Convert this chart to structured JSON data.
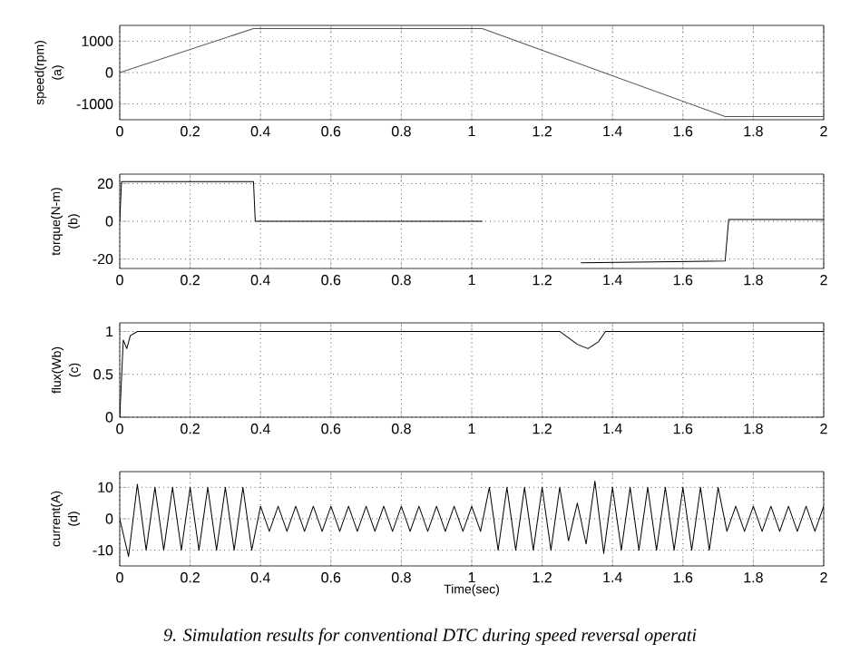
{
  "chart_data": [
    {
      "type": "line",
      "ylabel": "speed(rpm)",
      "annotations": [
        "(a)"
      ],
      "xlim": [
        0,
        2
      ],
      "xticks": [
        0,
        0.2,
        0.4,
        0.6,
        0.8,
        1,
        1.2,
        1.4,
        1.6,
        1.8,
        2
      ],
      "ylim": [
        -1500,
        1500
      ],
      "yticks": [
        -1000,
        0,
        1000
      ],
      "grid": true,
      "series": [
        {
          "color": "#555555",
          "x": [
            0,
            0.38,
            1.03,
            1.72,
            2
          ],
          "values": [
            0,
            1400,
            1400,
            -1400,
            -1400
          ]
        }
      ]
    },
    {
      "type": "line",
      "ylabel": "torque(N-m)",
      "annotations": [
        "(b)"
      ],
      "xlim": [
        0,
        2
      ],
      "xticks": [
        0,
        0.2,
        0.4,
        0.6,
        0.8,
        1,
        1.2,
        1.4,
        1.6,
        1.8,
        2
      ],
      "ylim": [
        -25,
        25
      ],
      "yticks": [
        -20,
        0,
        20
      ],
      "grid": true,
      "series": [
        {
          "color": "#000000",
          "x": [
            0,
            0.005,
            0.38,
            0.385,
            1.03,
            1.035,
            1.31,
            1.72,
            1.73,
            2
          ],
          "values": [
            0,
            21,
            21,
            0,
            0,
            null,
            -22,
            -21,
            1,
            1
          ]
        }
      ]
    },
    {
      "type": "line",
      "ylabel": "flux(Wb)",
      "annotations": [
        "(c)"
      ],
      "xlim": [
        0,
        2
      ],
      "xticks": [
        0,
        0.2,
        0.4,
        0.6,
        0.8,
        1,
        1.2,
        1.4,
        1.6,
        1.8,
        2
      ],
      "ylim": [
        0,
        1.1
      ],
      "yticks": [
        0,
        0.5,
        1
      ],
      "grid": true,
      "series": [
        {
          "color": "#000000",
          "x": [
            0,
            0.01,
            0.02,
            0.03,
            0.05,
            1.25,
            1.3,
            1.33,
            1.36,
            1.38,
            2
          ],
          "values": [
            0,
            0.9,
            0.8,
            0.95,
            1,
            1,
            0.85,
            0.8,
            0.88,
            1,
            1
          ]
        }
      ]
    },
    {
      "type": "line",
      "ylabel": "current(A)",
      "xlabel": "Time(sec)",
      "annotations": [
        "(d)",
        "9. Simulation results for conventional DTC during speed reversal operati"
      ],
      "xlim": [
        0,
        2
      ],
      "xticks": [
        0,
        0.2,
        0.4,
        0.6,
        0.8,
        1,
        1.2,
        1.4,
        1.6,
        1.8,
        2
      ],
      "ylim": [
        -15,
        15
      ],
      "yticks": [
        -10,
        0,
        10
      ],
      "grid": true,
      "series": [
        {
          "color": "#000000",
          "x": [
            0,
            0.025,
            0.05,
            0.075,
            0.1,
            0.125,
            0.15,
            0.175,
            0.2,
            0.225,
            0.25,
            0.275,
            0.3,
            0.325,
            0.35,
            0.375,
            0.4,
            0.425,
            0.45,
            0.475,
            0.5,
            0.525,
            0.55,
            0.575,
            0.6,
            0.625,
            0.65,
            0.675,
            0.7,
            0.725,
            0.75,
            0.775,
            0.8,
            0.825,
            0.85,
            0.875,
            0.9,
            0.925,
            0.95,
            0.975,
            1,
            1.025,
            1.05,
            1.075,
            1.1,
            1.125,
            1.15,
            1.175,
            1.2,
            1.225,
            1.25,
            1.275,
            1.3,
            1.325,
            1.35,
            1.375,
            1.4,
            1.425,
            1.45,
            1.475,
            1.5,
            1.525,
            1.55,
            1.575,
            1.6,
            1.625,
            1.65,
            1.675,
            1.7,
            1.725,
            1.75,
            1.775,
            1.8,
            1.825,
            1.85,
            1.875,
            1.9,
            1.925,
            1.95,
            1.975,
            2
          ],
          "values": [
            0,
            -12,
            11,
            -10,
            10,
            -10,
            10,
            -10,
            10,
            -10,
            10,
            -10,
            10,
            -10,
            10,
            -10,
            4,
            -4,
            4,
            -4,
            4,
            -4,
            4,
            -4,
            4,
            -4,
            4,
            -4,
            4,
            -4,
            4,
            -4,
            4,
            -4,
            4,
            -4,
            4,
            -4,
            4,
            -4,
            4,
            -4,
            10,
            -10,
            10,
            -10,
            10,
            -10,
            10,
            -10,
            10,
            -7,
            5,
            -8,
            12,
            -11,
            10,
            -10,
            10,
            -10,
            10,
            -10,
            10,
            -10,
            10,
            -10,
            10,
            -10,
            10,
            -4,
            4,
            -4,
            4,
            -4,
            4,
            -4,
            4,
            -4,
            4,
            -4,
            4
          ]
        }
      ]
    }
  ]
}
